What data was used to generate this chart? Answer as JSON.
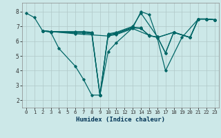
{
  "xlabel": "Humidex (Indice chaleur)",
  "background_color": "#cce8e8",
  "grid_color": "#b0c8c8",
  "line_color": "#006666",
  "xlim": [
    -0.5,
    23.5
  ],
  "ylim": [
    1.5,
    8.6
  ],
  "xticks": [
    0,
    1,
    2,
    3,
    4,
    5,
    6,
    7,
    8,
    9,
    10,
    11,
    12,
    13,
    14,
    15,
    16,
    17,
    18,
    19,
    20,
    21,
    22,
    23
  ],
  "yticks": [
    2,
    3,
    4,
    5,
    6,
    7,
    8
  ],
  "lines": [
    {
      "x": [
        0,
        1,
        2,
        3,
        4,
        6,
        7,
        8,
        9,
        10,
        11,
        13,
        14,
        15,
        16,
        17,
        19,
        21,
        22,
        23
      ],
      "y": [
        7.9,
        7.6,
        6.7,
        6.6,
        5.5,
        4.3,
        3.4,
        2.35,
        2.35,
        5.3,
        5.9,
        6.9,
        8.0,
        7.8,
        6.2,
        4.0,
        6.25,
        7.5,
        7.5,
        7.45
      ]
    },
    {
      "x": [
        2,
        3,
        6,
        7,
        8,
        9,
        10,
        11,
        13,
        14,
        16,
        17,
        18,
        20,
        21,
        22,
        23
      ],
      "y": [
        6.7,
        6.65,
        6.65,
        6.65,
        6.6,
        2.35,
        6.5,
        6.6,
        7.0,
        7.9,
        6.3,
        5.2,
        6.6,
        6.25,
        7.5,
        7.5,
        7.45
      ]
    },
    {
      "x": [
        2,
        3,
        6,
        7,
        8,
        9,
        10,
        11,
        13,
        14,
        15,
        16,
        17,
        18,
        20,
        21,
        22,
        23
      ],
      "y": [
        6.7,
        6.65,
        6.6,
        6.6,
        6.55,
        2.35,
        6.45,
        6.55,
        6.95,
        6.9,
        6.35,
        6.3,
        5.2,
        6.6,
        6.25,
        7.5,
        7.5,
        7.45
      ]
    },
    {
      "x": [
        2,
        3,
        6,
        7,
        8,
        9,
        10,
        11,
        13,
        14,
        15,
        16,
        18,
        20,
        21,
        22,
        23
      ],
      "y": [
        6.7,
        6.65,
        6.55,
        6.55,
        6.5,
        2.35,
        6.4,
        6.5,
        6.9,
        6.85,
        6.4,
        6.25,
        6.6,
        6.25,
        7.5,
        7.5,
        7.45
      ]
    },
    {
      "x": [
        2,
        3,
        6,
        10,
        11,
        13,
        15,
        16,
        18,
        20,
        21,
        22,
        23
      ],
      "y": [
        6.7,
        6.65,
        6.5,
        6.35,
        6.45,
        6.85,
        6.4,
        6.25,
        6.6,
        6.25,
        7.5,
        7.5,
        7.45
      ]
    }
  ]
}
